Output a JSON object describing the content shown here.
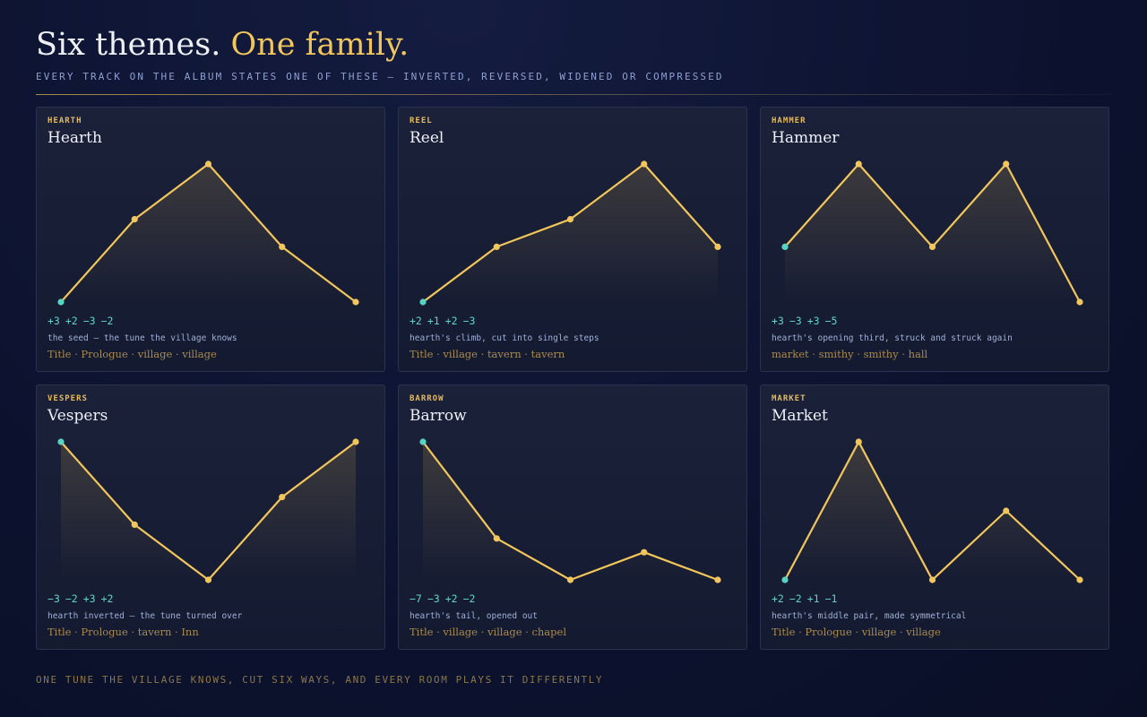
{
  "header": {
    "title_lead": "Six themes.",
    "title_accent": "One family.",
    "subtitle": "EVERY TRACK ON THE ALBUM STATES ONE OF THESE — INVERTED, REVERSED, WIDENED OR COMPRESSED"
  },
  "chart_data": [
    {
      "type": "line",
      "kicker": "HEARTH",
      "title": "Hearth",
      "values": [
        0,
        3,
        5,
        2,
        0
      ],
      "ylim": [
        0,
        5
      ],
      "intervals": [
        "+3",
        "+2",
        "−3",
        "−2"
      ],
      "description": "the seed — the tune the village knows",
      "rooms": "Title · Prologue · village · village",
      "color": "#f2c65a",
      "start_color": "#56d3c2"
    },
    {
      "type": "line",
      "kicker": "REEL",
      "title": "Reel",
      "values": [
        0,
        2,
        3,
        5,
        2
      ],
      "ylim": [
        0,
        5
      ],
      "intervals": [
        "+2",
        "+1",
        "+2",
        "−3"
      ],
      "description": "hearth's climb, cut into single steps",
      "rooms": "Title · village · tavern · tavern",
      "color": "#f2c65a",
      "start_color": "#56d3c2"
    },
    {
      "type": "line",
      "kicker": "HAMMER",
      "title": "Hammer",
      "values": [
        0,
        3,
        0,
        3,
        -2
      ],
      "ylim": [
        -2,
        3
      ],
      "intervals": [
        "+3",
        "−3",
        "+3",
        "−5"
      ],
      "description": "hearth's opening third, struck and struck again",
      "rooms": "market · smithy · smithy · hall",
      "color": "#f2c65a",
      "start_color": "#56d3c2"
    },
    {
      "type": "line",
      "kicker": "VESPERS",
      "title": "Vespers",
      "values": [
        0,
        -3,
        -5,
        -2,
        0
      ],
      "ylim": [
        -5,
        0
      ],
      "intervals": [
        "−3",
        "−2",
        "+3",
        "+2"
      ],
      "description": "hearth inverted — the tune turned over",
      "rooms": "Title · Prologue · tavern · Inn",
      "color": "#f2c65a",
      "start_color": "#56d3c2"
    },
    {
      "type": "line",
      "kicker": "BARROW",
      "title": "Barrow",
      "values": [
        0,
        -7,
        -10,
        -8,
        -10
      ],
      "ylim": [
        -10,
        0
      ],
      "intervals": [
        "−7",
        "−3",
        "+2",
        "−2"
      ],
      "description": "hearth's tail, opened out",
      "rooms": "Title · village · village · chapel",
      "color": "#f2c65a",
      "start_color": "#56d3c2"
    },
    {
      "type": "line",
      "kicker": "MARKET",
      "title": "Market",
      "values": [
        0,
        2,
        0,
        1,
        0
      ],
      "ylim": [
        0,
        2
      ],
      "intervals": [
        "+2",
        "−2",
        "+1",
        "−1"
      ],
      "description": "hearth's middle pair, made symmetrical",
      "rooms": "Title · Prologue · village · village",
      "color": "#f2c65a",
      "start_color": "#56d3c2"
    }
  ],
  "footer": "ONE TUNE THE VILLAGE KNOWS, CUT SIX WAYS, AND EVERY ROOM PLAYS IT DIFFERENTLY"
}
